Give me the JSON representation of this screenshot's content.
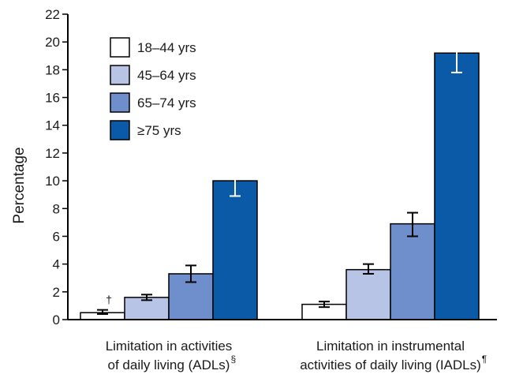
{
  "chart_data": {
    "type": "bar",
    "ylabel": "Percentage",
    "ylim": [
      0,
      22
    ],
    "yticks": [
      0,
      2,
      4,
      6,
      8,
      10,
      12,
      14,
      16,
      18,
      20,
      22
    ],
    "categories": [
      {
        "line1": "Limitation in activities",
        "line2": "of daily living (ADLs)",
        "sup": "§"
      },
      {
        "line1": "Limitation in instrumental",
        "line2": "activities of daily living (IADLs)",
        "sup": "¶"
      }
    ],
    "series": [
      {
        "name": "18–44 yrs",
        "color": "#ffffff",
        "values": [
          0.5,
          1.1
        ],
        "ci_low": [
          0.4,
          0.9
        ],
        "ci_high": [
          0.7,
          1.3
        ]
      },
      {
        "name": "45–64 yrs",
        "color": "#b7c4e6",
        "values": [
          1.6,
          3.6
        ],
        "ci_low": [
          1.4,
          3.3
        ],
        "ci_high": [
          1.8,
          4.0
        ]
      },
      {
        "name": "65–74 yrs",
        "color": "#6e8fcc",
        "values": [
          3.3,
          6.9
        ],
        "ci_low": [
          2.7,
          6.0
        ],
        "ci_high": [
          3.9,
          7.7
        ]
      },
      {
        "name": "≥75 yrs",
        "color": "#0a5aa8",
        "values": [
          10.0,
          19.2
        ],
        "ci_low": [
          8.9,
          17.8
        ],
        "ci_high": [
          11.1,
          20.8
        ]
      }
    ],
    "annotations": [
      {
        "text": "†",
        "category": 0,
        "series": 0
      }
    ],
    "grid": false,
    "legend": "top-left"
  }
}
